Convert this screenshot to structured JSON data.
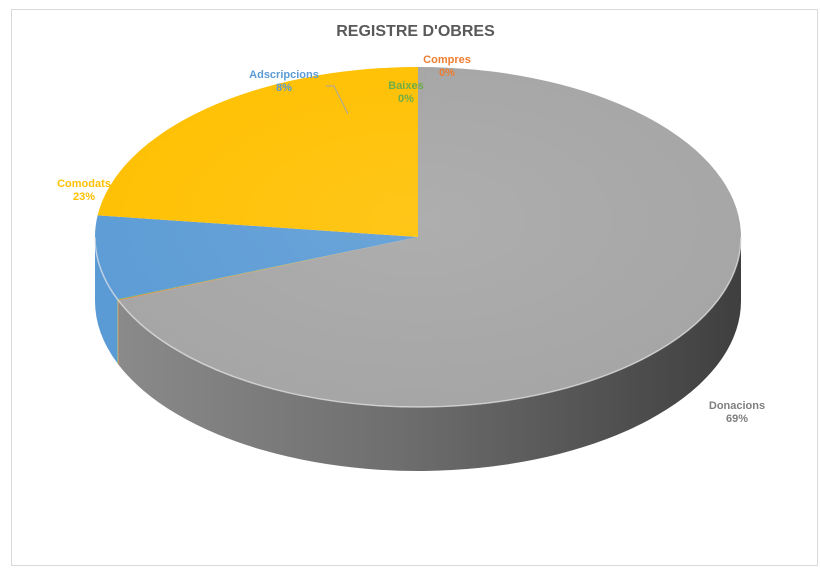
{
  "chart_data": {
    "type": "pie",
    "title": "REGISTRE D'OBRES",
    "categories": [
      "Donacions",
      "Compres",
      "Baixes",
      "Adscripcions",
      "Comodats"
    ],
    "values": [
      69,
      0,
      0,
      8,
      23
    ],
    "value_labels": [
      "69%",
      "0%",
      "0%",
      "8%",
      "23%"
    ],
    "colors": [
      "#a5a5a5",
      "#ed7d31",
      "#70ad47",
      "#5b9bd5",
      "#ffc000"
    ],
    "label_colors": [
      "#7f7f7f",
      "#ed7d31",
      "#70ad47",
      "#5b9bd5",
      "#ffc000"
    ],
    "style": "3d-pie",
    "legend": "none"
  }
}
